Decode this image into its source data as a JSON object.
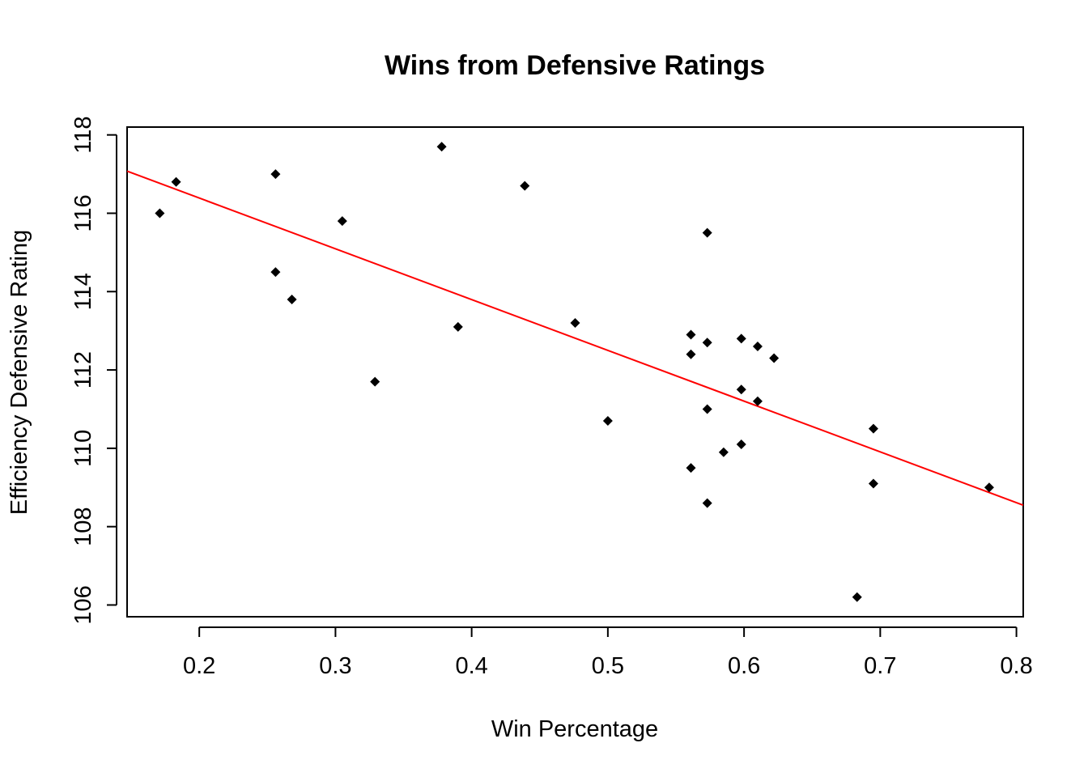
{
  "chart_data": {
    "type": "scatter",
    "title": "Wins from Defensive Ratings",
    "xlabel": "Win Percentage",
    "ylabel": "Efficiency Defensive Rating",
    "xlim": [
      0.147,
      0.805
    ],
    "ylim": [
      105.7,
      118.2
    ],
    "x_ticks": [
      0.2,
      0.3,
      0.4,
      0.5,
      0.6,
      0.7,
      0.8
    ],
    "x_tick_labels": [
      "0.2",
      "0.3",
      "0.4",
      "0.5",
      "0.6",
      "0.7",
      "0.8"
    ],
    "y_ticks": [
      106,
      108,
      110,
      112,
      114,
      116,
      118
    ],
    "y_tick_labels": [
      "106",
      "108",
      "110",
      "112",
      "114",
      "116",
      "118"
    ],
    "grid": false,
    "marker": "diamond",
    "point_color": "#000000",
    "points": [
      {
        "x": 0.171,
        "y": 116.0
      },
      {
        "x": 0.183,
        "y": 116.8
      },
      {
        "x": 0.256,
        "y": 117.0
      },
      {
        "x": 0.256,
        "y": 114.5
      },
      {
        "x": 0.268,
        "y": 113.8
      },
      {
        "x": 0.305,
        "y": 115.8
      },
      {
        "x": 0.329,
        "y": 111.7
      },
      {
        "x": 0.378,
        "y": 117.7
      },
      {
        "x": 0.39,
        "y": 113.1
      },
      {
        "x": 0.439,
        "y": 116.7
      },
      {
        "x": 0.476,
        "y": 113.2
      },
      {
        "x": 0.5,
        "y": 110.7
      },
      {
        "x": 0.561,
        "y": 112.9
      },
      {
        "x": 0.561,
        "y": 112.4
      },
      {
        "x": 0.561,
        "y": 109.5
      },
      {
        "x": 0.573,
        "y": 115.5
      },
      {
        "x": 0.573,
        "y": 112.7
      },
      {
        "x": 0.573,
        "y": 111.0
      },
      {
        "x": 0.573,
        "y": 108.6
      },
      {
        "x": 0.585,
        "y": 109.9
      },
      {
        "x": 0.598,
        "y": 112.8
      },
      {
        "x": 0.598,
        "y": 111.5
      },
      {
        "x": 0.598,
        "y": 110.1
      },
      {
        "x": 0.61,
        "y": 112.6
      },
      {
        "x": 0.61,
        "y": 111.2
      },
      {
        "x": 0.622,
        "y": 112.3
      },
      {
        "x": 0.683,
        "y": 106.2
      },
      {
        "x": 0.695,
        "y": 110.5
      },
      {
        "x": 0.695,
        "y": 109.1
      },
      {
        "x": 0.78,
        "y": 109.0
      }
    ],
    "trend_line": {
      "color": "#ff0000",
      "intercept": 118.98,
      "slope": -12.96
    }
  }
}
